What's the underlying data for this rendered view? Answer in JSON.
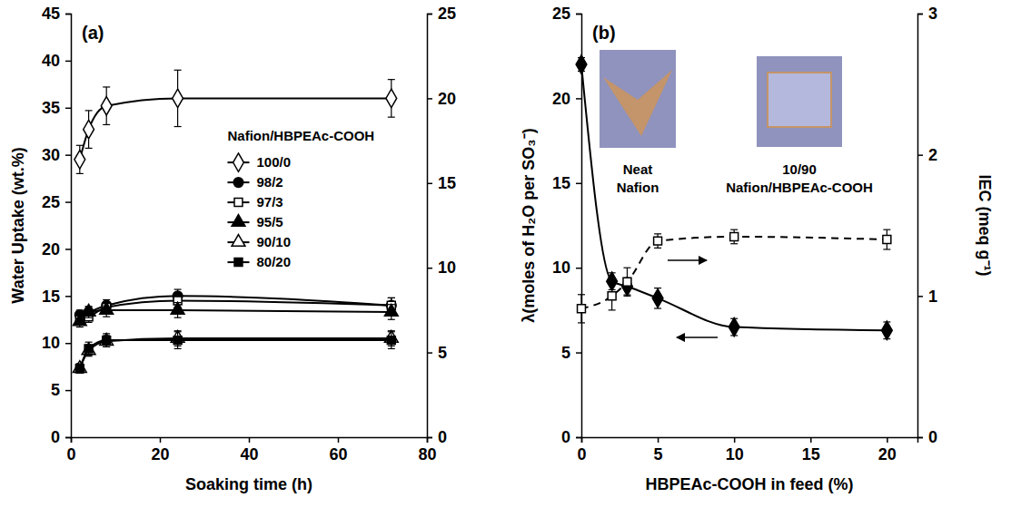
{
  "chart_data": [
    {
      "type": "line",
      "panel_label": "(a)",
      "x_label": "Soaking time (h)",
      "y_label": "Water Uptake (wt.%)",
      "xlim": [
        0,
        80
      ],
      "xticks": [
        0,
        20,
        40,
        60,
        80
      ],
      "ylim": [
        0,
        45
      ],
      "yticks": [
        0,
        5,
        10,
        15,
        20,
        25,
        30,
        35,
        40,
        45
      ],
      "y2lim": [
        0,
        25
      ],
      "y2ticks": [
        0,
        5,
        10,
        15,
        20,
        25
      ],
      "legend": "center",
      "legend_title": "Nafion/HBPEAc-COOH",
      "x": [
        2,
        4,
        8,
        24,
        72
      ],
      "series": [
        {
          "name": "100/0",
          "color": "#000000",
          "marker": "diamond-open",
          "line_style": "solid",
          "values": [
            29.5,
            32.7,
            35.2,
            36.0,
            36.0
          ],
          "errors": [
            1.5,
            2.0,
            2.0,
            3.0,
            2.0
          ]
        },
        {
          "name": "98/2",
          "color": "#000000",
          "marker": "circle",
          "line_style": "solid",
          "values": [
            13.0,
            13.3,
            14.0,
            15.0,
            14.0
          ],
          "errors": [
            0.5,
            0.5,
            0.6,
            0.7,
            0.8
          ]
        },
        {
          "name": "97/3",
          "color": "#000000",
          "marker": "square-open",
          "line_style": "solid",
          "values": [
            12.5,
            12.8,
            13.8,
            14.5,
            14.0
          ],
          "errors": [
            0.5,
            0.6,
            0.6,
            0.7,
            0.8
          ]
        },
        {
          "name": "95/5",
          "color": "#000000",
          "marker": "triangle",
          "line_style": "solid",
          "values": [
            12.3,
            13.3,
            13.5,
            13.5,
            13.3
          ],
          "errors": [
            0.6,
            0.6,
            0.7,
            0.8,
            0.8
          ]
        },
        {
          "name": "90/10",
          "color": "#000000",
          "marker": "triangle-open",
          "line_style": "solid",
          "values": [
            7.3,
            9.2,
            10.2,
            10.5,
            10.5
          ],
          "errors": [
            0.5,
            0.6,
            0.6,
            0.8,
            0.8
          ]
        },
        {
          "name": "80/20",
          "color": "#000000",
          "marker": "square",
          "line_style": "solid",
          "values": [
            7.3,
            9.4,
            10.3,
            10.3,
            10.3
          ],
          "errors": [
            0.5,
            0.7,
            0.7,
            0.9,
            0.9
          ]
        }
      ]
    },
    {
      "type": "line",
      "panel_label": "(b)",
      "x_label": "HBPEAc-COOH in feed (%)",
      "y_label": "λ(moles of H₂O per SO₃⁻)",
      "y2_label": "IEC (meq g⁻¹)",
      "xlim": [
        0,
        22
      ],
      "xticks": [
        0,
        5,
        10,
        15,
        20
      ],
      "ylim": [
        0,
        25
      ],
      "yticks": [
        0,
        5,
        10,
        15,
        20,
        25
      ],
      "y2lim": [
        0,
        3
      ],
      "y2ticks": [
        0,
        1,
        2,
        3
      ],
      "annotations": [
        {
          "lines": [
            "Neat",
            "Nafion"
          ]
        },
        {
          "lines": [
            "10/90",
            "Nafion/HBPEAc-COOH"
          ]
        }
      ],
      "x": [
        0,
        2,
        3,
        5,
        10,
        20
      ],
      "series": [
        {
          "color": "#000000",
          "marker": "diamond",
          "line_style": "solid",
          "values": [
            22.0,
            9.2,
            8.9,
            8.2,
            6.5,
            6.3
          ],
          "errors": [
            0.4,
            0.5,
            0.5,
            0.6,
            0.5,
            0.5
          ]
        },
        {
          "axis": "y2",
          "color": "#000000",
          "marker": "square-open",
          "line_style": "dashed",
          "values": [
            0.91,
            1.0,
            1.1,
            1.39,
            1.42,
            1.4
          ],
          "errors": [
            0.1,
            0.1,
            0.1,
            0.05,
            0.05,
            0.07
          ]
        }
      ]
    }
  ]
}
